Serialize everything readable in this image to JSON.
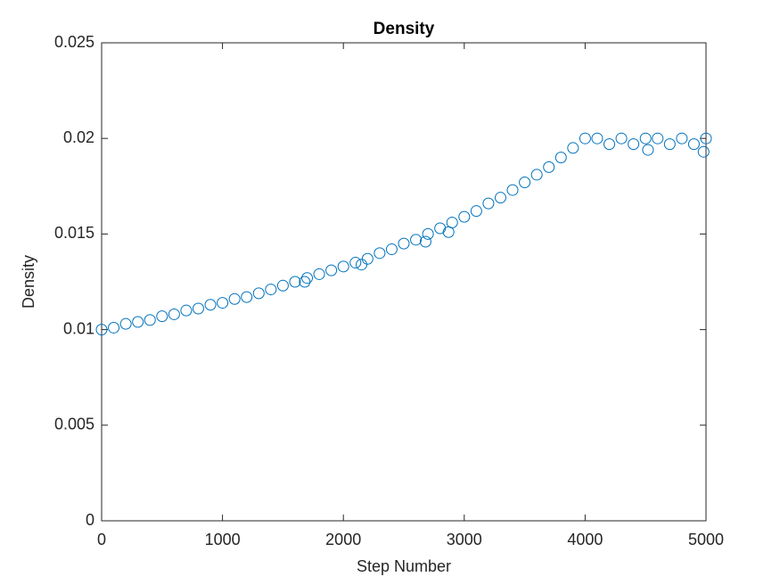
{
  "chart_data": {
    "type": "scatter",
    "title": "Density",
    "x_label": "Step Number",
    "y_label": "Density",
    "color": "#0072bd",
    "x": [
      0,
      100,
      200,
      300,
      400,
      500,
      600,
      700,
      800,
      900,
      1000,
      1100,
      1200,
      1300,
      1400,
      1500,
      1600,
      1680,
      1700,
      1800,
      1900,
      2000,
      2100,
      2150,
      2200,
      2300,
      2400,
      2500,
      2600,
      2680,
      2700,
      2800,
      2870,
      2900,
      3000,
      3100,
      3200,
      3300,
      3400,
      3500,
      3600,
      3700,
      3800,
      3900,
      4000,
      4100,
      4200,
      4300,
      4400,
      4500,
      4520,
      4600,
      4700,
      4800,
      4900,
      4980,
      5000
    ],
    "y": [
      0.01,
      0.0101,
      0.0103,
      0.0104,
      0.0105,
      0.0107,
      0.0108,
      0.011,
      0.0111,
      0.0113,
      0.0114,
      0.0116,
      0.0117,
      0.0119,
      0.0121,
      0.0123,
      0.0125,
      0.0125,
      0.0127,
      0.0129,
      0.0131,
      0.0133,
      0.0135,
      0.0134,
      0.0137,
      0.014,
      0.0142,
      0.0145,
      0.0147,
      0.0146,
      0.015,
      0.0153,
      0.0151,
      0.0156,
      0.0159,
      0.0162,
      0.0166,
      0.0169,
      0.0173,
      0.0177,
      0.0181,
      0.0185,
      0.019,
      0.0195,
      0.02,
      0.02,
      0.0197,
      0.02,
      0.0197,
      0.02,
      0.0194,
      0.02,
      0.0197,
      0.02,
      0.0197,
      0.0193,
      0.02
    ],
    "xlim": [
      0,
      5000
    ],
    "xticks": [
      0,
      1000,
      2000,
      3000,
      4000,
      5000
    ],
    "ylim": [
      0,
      0.025
    ],
    "yticks": [
      0,
      0.005,
      0.01,
      0.015,
      0.02,
      0.025
    ]
  }
}
